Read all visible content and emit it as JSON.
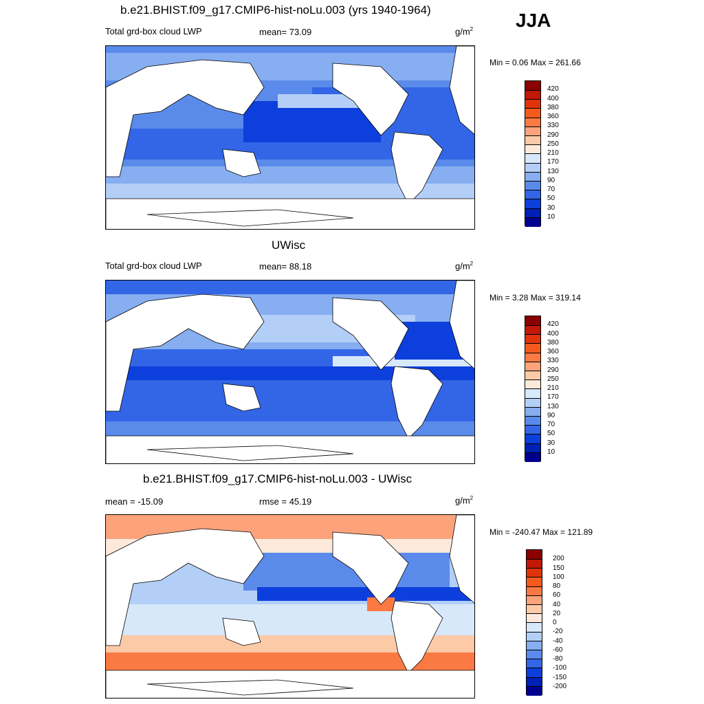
{
  "season": "JJA",
  "panels": [
    {
      "title": "b.e21.BHIST.f09_g17.CMIP6-hist-noLu.003 (yrs 1940-1964)",
      "left_label": "Total grd-box cloud LWP",
      "center_label": "mean=  73.09",
      "units_base": "g/m",
      "units_exp": "2",
      "minmax": "Min =   0.06 Max = 261.66",
      "colorbar": "lwp"
    },
    {
      "title": "UWisc",
      "left_label": "Total grd-box cloud LWP",
      "center_label": "mean=  88.18",
      "units_base": "g/m",
      "units_exp": "2",
      "minmax": "Min =   3.28 Max = 319.14",
      "colorbar": "lwp"
    },
    {
      "title": "b.e21.BHIST.f09_g17.CMIP6-hist-noLu.003 - UWisc",
      "left_label": "mean = -15.09",
      "center_label": "rmse =  45.19",
      "units_base": "g/m",
      "units_exp": "2",
      "minmax": "Min = -240.47 Max = 121.89",
      "colorbar": "diff"
    }
  ],
  "colorbars": {
    "lwp": {
      "labels": [
        "420",
        "400",
        "380",
        "360",
        "330",
        "290",
        "250",
        "210",
        "170",
        "130",
        "90",
        "70",
        "50",
        "30",
        "10"
      ],
      "colors": [
        "#8b0000",
        "#c21807",
        "#e0330c",
        "#f45a1c",
        "#fb7a43",
        "#fca37b",
        "#fdcaa8",
        "#fde9dc",
        "#d7e8fb",
        "#b3cff8",
        "#86aef1",
        "#5b8bea",
        "#3366e6",
        "#0d3fdc",
        "#0020b6",
        "#000090"
      ]
    },
    "diff": {
      "labels": [
        "200",
        "150",
        "100",
        "80",
        "60",
        "40",
        "20",
        "0",
        "-20",
        "-40",
        "-60",
        "-80",
        "-100",
        "-150",
        "-200"
      ],
      "colors": [
        "#8b0000",
        "#c21807",
        "#e0330c",
        "#f45a1c",
        "#fb7a43",
        "#fca37b",
        "#fdcaa8",
        "#fde9dc",
        "#d7e8fb",
        "#b3cff8",
        "#86aef1",
        "#5b8bea",
        "#3366e6",
        "#0d3fdc",
        "#0020b6",
        "#000090"
      ]
    }
  }
}
